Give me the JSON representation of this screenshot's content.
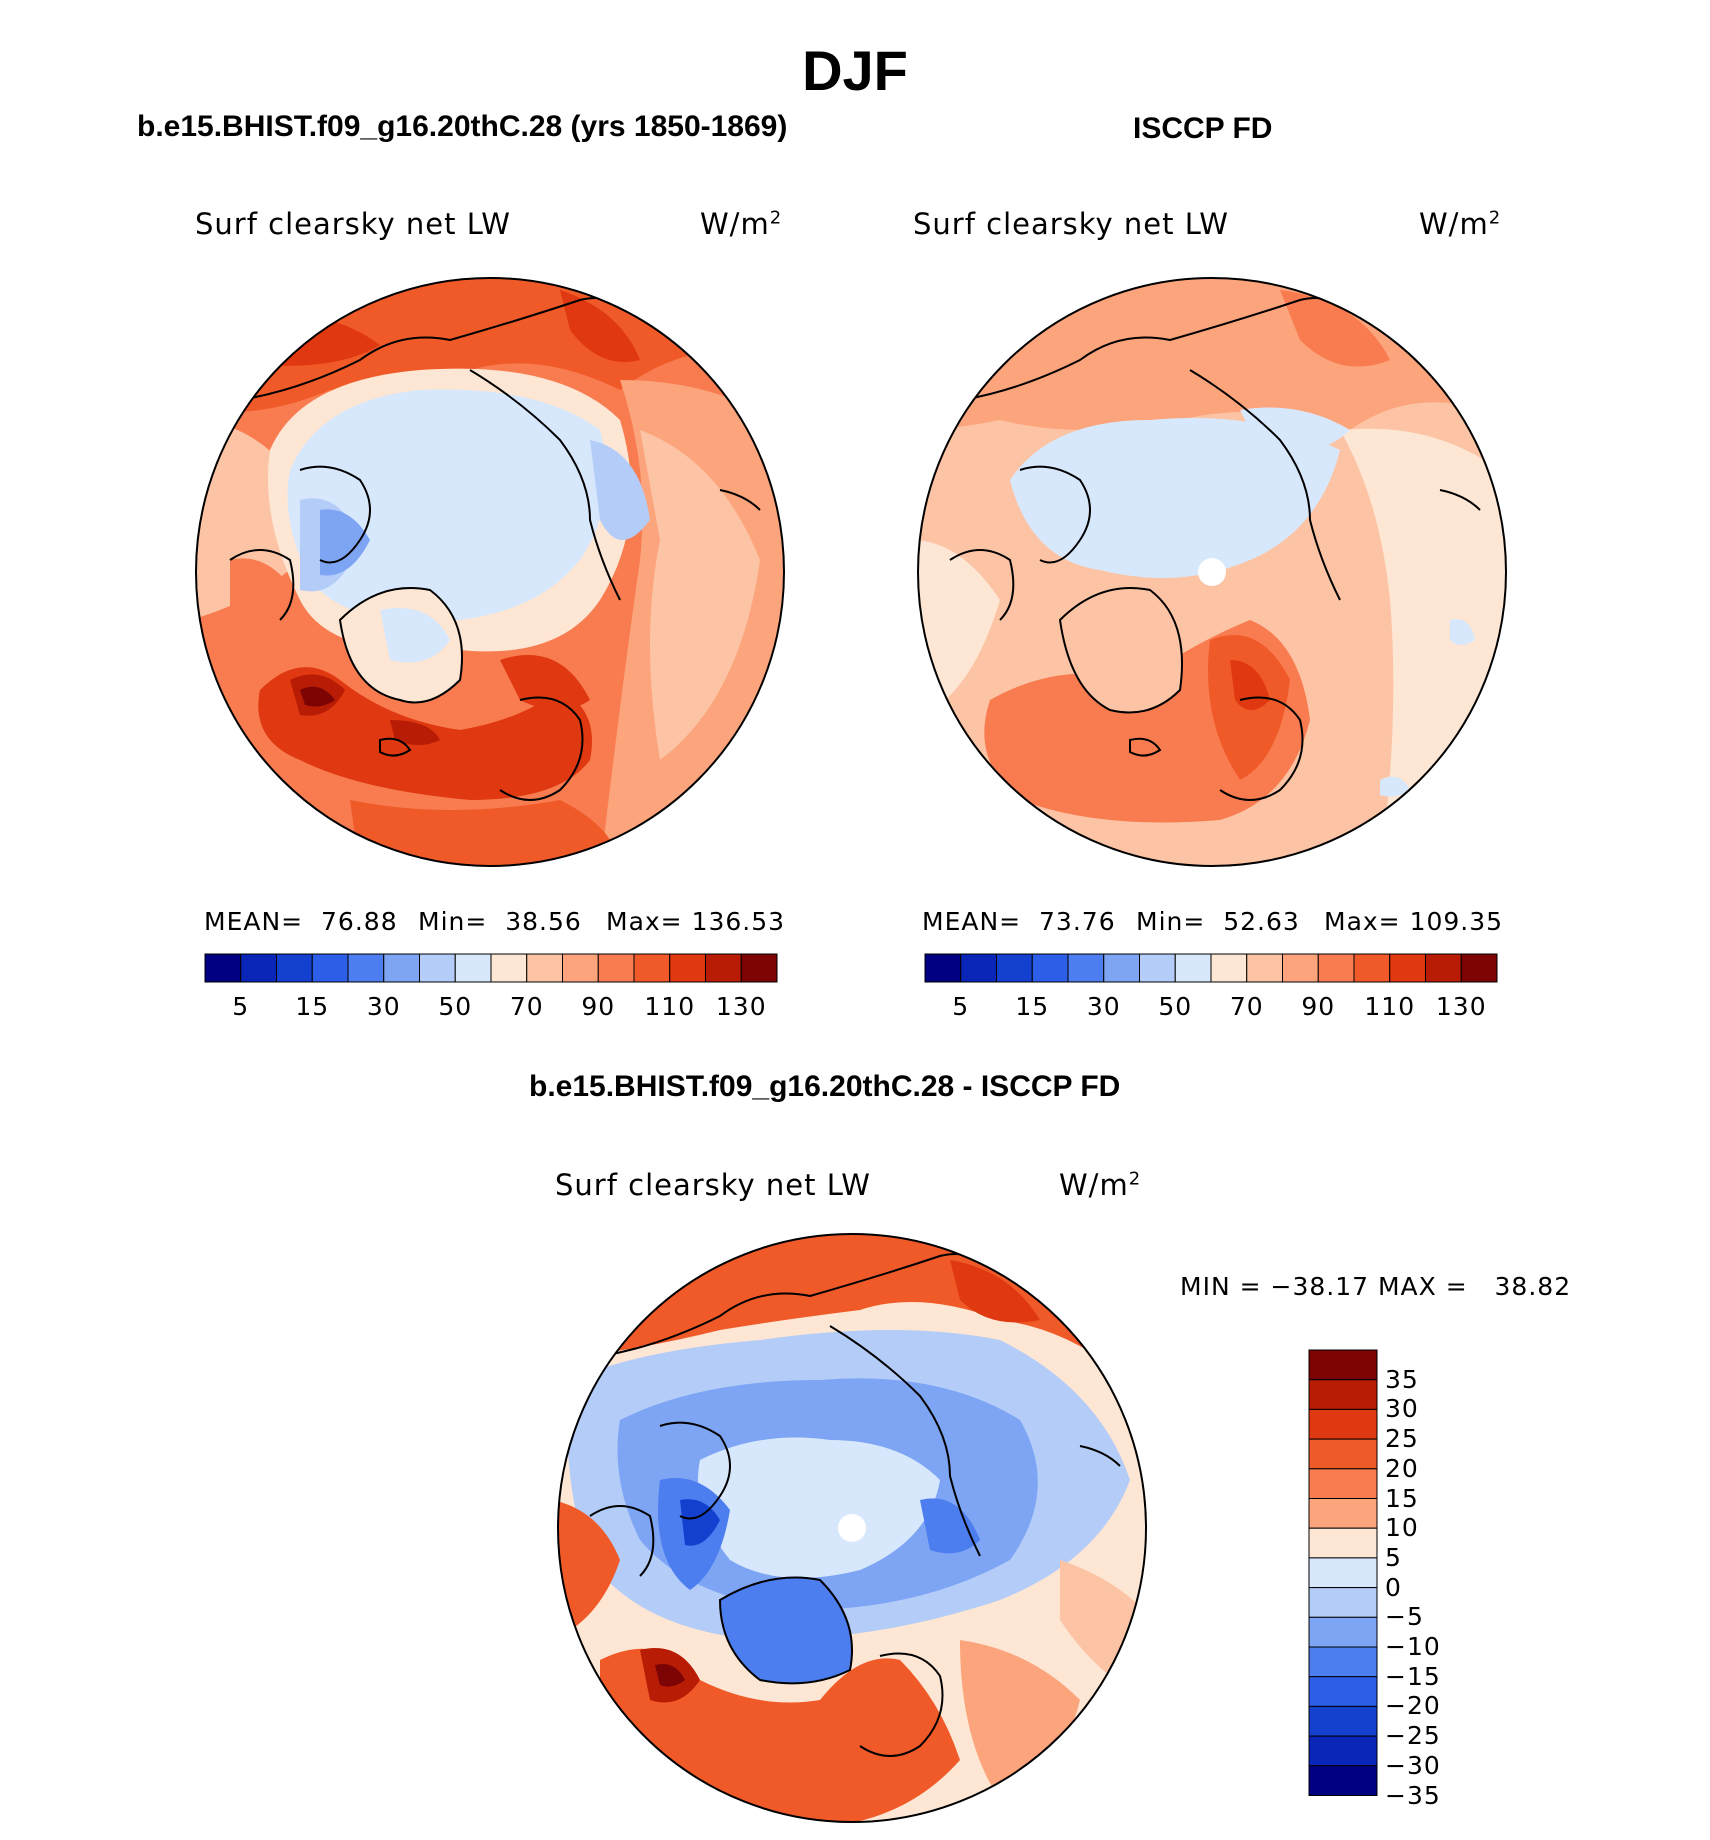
{
  "title": "DJF",
  "panels": [
    {
      "title": "b.e15.BHIST.f09_g16.20thC.28 (yrs 1850-1869)",
      "variable": "Surf clearsky net LW",
      "units_base": "W/m",
      "units_exp": "2",
      "stats": {
        "mean_label": "MEAN=",
        "mean": "76.88",
        "min_label": "Min=",
        "min": "38.56",
        "max_label": "Max=",
        "max": "136.53"
      }
    },
    {
      "title": "ISCCP FD",
      "variable": "Surf clearsky net LW",
      "units_base": "W/m",
      "units_exp": "2",
      "stats": {
        "mean_label": "MEAN=",
        "mean": "73.76",
        "min_label": "Min=",
        "min": "52.63",
        "max_label": "Max=",
        "max": "109.35"
      }
    },
    {
      "title": "b.e15.BHIST.f09_g16.20thC.28 - ISCCP FD",
      "variable": "Surf clearsky net LW",
      "units_base": "W/m",
      "units_exp": "2",
      "stats": {
        "min_label": "MIN =",
        "min": "−38.17",
        "max_label": "MAX =",
        "max": "38.82"
      }
    }
  ],
  "colorbar_abs": {
    "colors": [
      "#000080",
      "#0a26b8",
      "#1440d0",
      "#2c5ee8",
      "#4c7ef0",
      "#7ea4f4",
      "#b4ccf8",
      "#d8e8fc",
      "#fde6d4",
      "#fcc4a4",
      "#fca47c",
      "#f87c50",
      "#f05a28",
      "#e03810",
      "#b81c04",
      "#7c0404"
    ],
    "labels": [
      "5",
      "15",
      "30",
      "50",
      "70",
      "90",
      "110",
      "130"
    ]
  },
  "colorbar_diff": {
    "colors": [
      "#7c0404",
      "#b81c04",
      "#e03810",
      "#f05a28",
      "#f87c50",
      "#fca47c",
      "#fde6d4",
      "#d8e8fc",
      "#b4ccf8",
      "#7ea4f4",
      "#4c7ef0",
      "#2c5ee8",
      "#1440d0",
      "#0a26b8",
      "#000080"
    ],
    "labels": [
      "35",
      "30",
      "25",
      "20",
      "15",
      "10",
      "5",
      "0",
      "−5",
      "−10",
      "−15",
      "−20",
      "−25",
      "−30",
      "−35"
    ]
  }
}
